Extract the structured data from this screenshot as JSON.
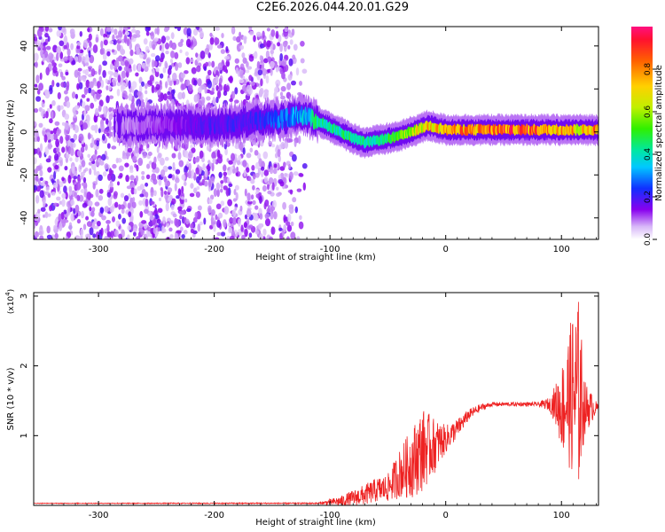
{
  "title": "C2E6.2026.044.20.01.G29",
  "colors": {
    "axis": "#000000",
    "snr_line": "#ee2222",
    "background": "#ffffff"
  },
  "chart_data": [
    {
      "type": "heatmap",
      "name": "spectrogram",
      "xlabel": "Height of straight line (km)",
      "ylabel": "Frequency (Hz)",
      "xlim": [
        -356,
        132
      ],
      "ylim": [
        -50,
        49
      ],
      "x_ticks": [
        -300,
        -200,
        -100,
        0,
        100
      ],
      "y_ticks": [
        -40,
        -20,
        0,
        20,
        40
      ],
      "colorbar": {
        "label": "Normalized spectral amplitude",
        "range": [
          0,
          1
        ],
        "ticks": [
          "0.0",
          "0.2",
          "0.4",
          "0.6",
          "0.8"
        ],
        "tick_values": [
          0,
          0.2,
          0.4,
          0.6,
          0.8
        ]
      },
      "ridge": {
        "x": [
          -356,
          -300,
          -270,
          -230,
          -200,
          -170,
          -140,
          -125,
          -110,
          -95,
          -80,
          -70,
          -60,
          -50,
          -40,
          -25,
          -15,
          0,
          20,
          50,
          80,
          90,
          100,
          110,
          115,
          132
        ],
        "freq": [
          2,
          3,
          3,
          3,
          3,
          5,
          6,
          8,
          5,
          1,
          -3,
          -5,
          -4,
          -3,
          -2,
          1,
          3,
          1,
          1,
          1,
          1,
          1,
          1,
          1,
          1,
          1
        ],
        "amplitude": [
          0.05,
          0.08,
          0.1,
          0.15,
          0.2,
          0.2,
          0.3,
          0.35,
          0.45,
          0.45,
          0.5,
          0.45,
          0.4,
          0.5,
          0.6,
          0.7,
          0.75,
          0.8,
          0.85,
          0.9,
          0.9,
          0.8,
          0.9,
          0.8,
          0.7,
          0.9
        ]
      },
      "noise_region_x": [
        -356,
        -120
      ]
    },
    {
      "type": "line",
      "name": "snr",
      "xlabel": "Height of straight line (km)",
      "ylabel": "SNR (10 * v/v)",
      "y_scale_label": "(x10",
      "y_scale_exponent": "4",
      "xlim": [
        -356,
        132
      ],
      "ylim": [
        0,
        3.05
      ],
      "x_ticks": [
        -300,
        -200,
        -100,
        0,
        100
      ],
      "y_ticks": [
        1,
        2,
        3
      ],
      "envelope": {
        "x": [
          -356,
          -110,
          -90,
          -70,
          -60,
          -50,
          -40,
          -30,
          -20,
          -10,
          0,
          10,
          20,
          30,
          40,
          60,
          80,
          90,
          95,
          100,
          105,
          110,
          115,
          120,
          132
        ],
        "y": [
          0.03,
          0.03,
          0.06,
          0.15,
          0.22,
          0.25,
          0.45,
          0.6,
          0.8,
          0.85,
          0.95,
          1.1,
          1.3,
          1.4,
          1.45,
          1.45,
          1.45,
          1.45,
          1.45,
          1.4,
          1.5,
          1.6,
          1.6,
          1.4,
          1.4
        ]
      },
      "noise_amp": {
        "x": [
          -356,
          -110,
          -90,
          -70,
          -50,
          -40,
          -30,
          -20,
          -10,
          0,
          20,
          40,
          80,
          90,
          95,
          100,
          105,
          110,
          115,
          120,
          132
        ],
        "a": [
          0.005,
          0.01,
          0.08,
          0.15,
          0.2,
          0.35,
          0.5,
          0.6,
          0.4,
          0.2,
          0.08,
          0.03,
          0.03,
          0.1,
          0.3,
          0.6,
          0.9,
          1.2,
          1.4,
          0.4,
          0.03
        ]
      }
    }
  ]
}
